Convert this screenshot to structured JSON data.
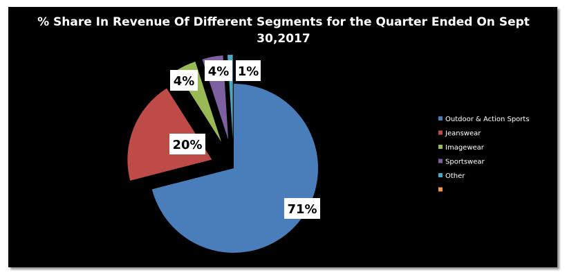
{
  "chart_data": {
    "type": "pie",
    "title_lines": [
      "% Share In Revenue Of Different Segments for the Quarter Ended On Sept",
      "30,2017"
    ],
    "slices": [
      {
        "name": "Outdoor & Action Sports",
        "value": 71,
        "label": "71%",
        "color": "#4A7EBB"
      },
      {
        "name": "Jeanswear",
        "value": 20,
        "label": "20%",
        "color": "#BE4B48"
      },
      {
        "name": "Imagewear",
        "value": 4,
        "label": "4%",
        "color": "#98B954"
      },
      {
        "name": "Sportswear",
        "value": 4,
        "label": "4%",
        "color": "#7D60A0"
      },
      {
        "name": "Other",
        "value": 1,
        "label": "1%",
        "color": "#46AAC5"
      }
    ],
    "legend": [
      {
        "name": "Outdoor & Action Sports",
        "color": "#4A7EBB"
      },
      {
        "name": "Jeanswear",
        "color": "#BE4B48"
      },
      {
        "name": "Imagewear",
        "color": "#98B954"
      },
      {
        "name": "Sportswear",
        "color": "#7D60A0"
      },
      {
        "name": "Other",
        "color": "#46AAC5"
      },
      {
        "name": "",
        "color": "#F79646"
      }
    ],
    "legend_position": "right",
    "exploded": true
  }
}
